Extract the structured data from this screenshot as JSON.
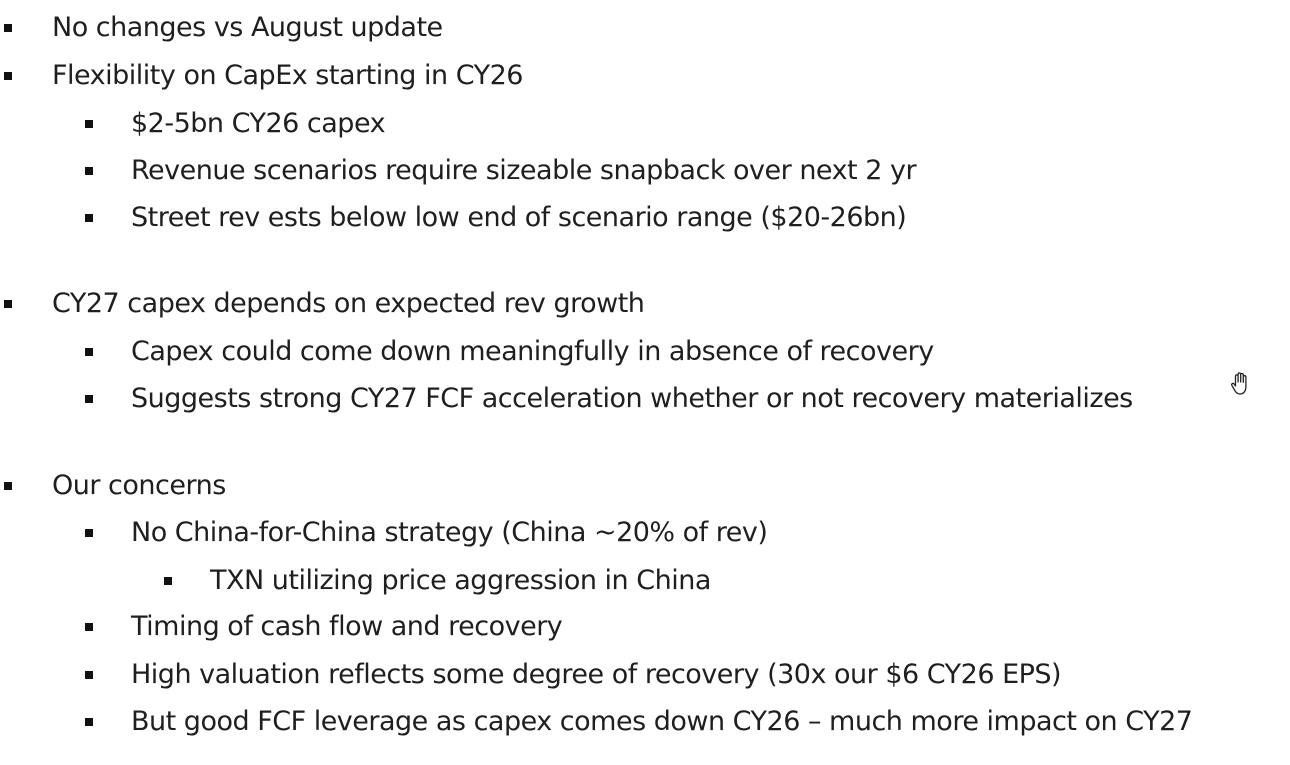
{
  "slide": {
    "bullets": [
      {
        "level": 1,
        "text": "No changes vs August update"
      },
      {
        "level": 1,
        "text": "Flexibility on CapEx starting in CY26"
      },
      {
        "level": 2,
        "text": "$2-5bn CY26 capex"
      },
      {
        "level": 2,
        "text": "Revenue scenarios require sizeable snapback over next 2 yr"
      },
      {
        "level": 2,
        "text": "Street rev ests below low end of scenario range ($20-26bn)"
      },
      {
        "level": 1,
        "text": "CY27 capex depends on expected rev growth"
      },
      {
        "level": 2,
        "text": "Capex could come down meaningfully in absence of recovery"
      },
      {
        "level": 2,
        "text": "Suggests strong CY27 FCF acceleration whether or not recovery materializes"
      },
      {
        "level": 1,
        "text": "Our concerns"
      },
      {
        "level": 2,
        "text": "No China-for-China strategy (China ~20% of rev)"
      },
      {
        "level": 3,
        "text": "TXN utilizing price aggression in China"
      },
      {
        "level": 2,
        "text": "Timing of cash flow and recovery"
      },
      {
        "level": 2,
        "text": "High valuation reflects some degree of recovery (30x our $6 CY26 EPS)"
      },
      {
        "level": 2,
        "text": "But good FCF leverage as capex comes down CY26 – much more impact on CY27"
      }
    ]
  },
  "cursor": {
    "icon": "hand-cursor-icon"
  }
}
